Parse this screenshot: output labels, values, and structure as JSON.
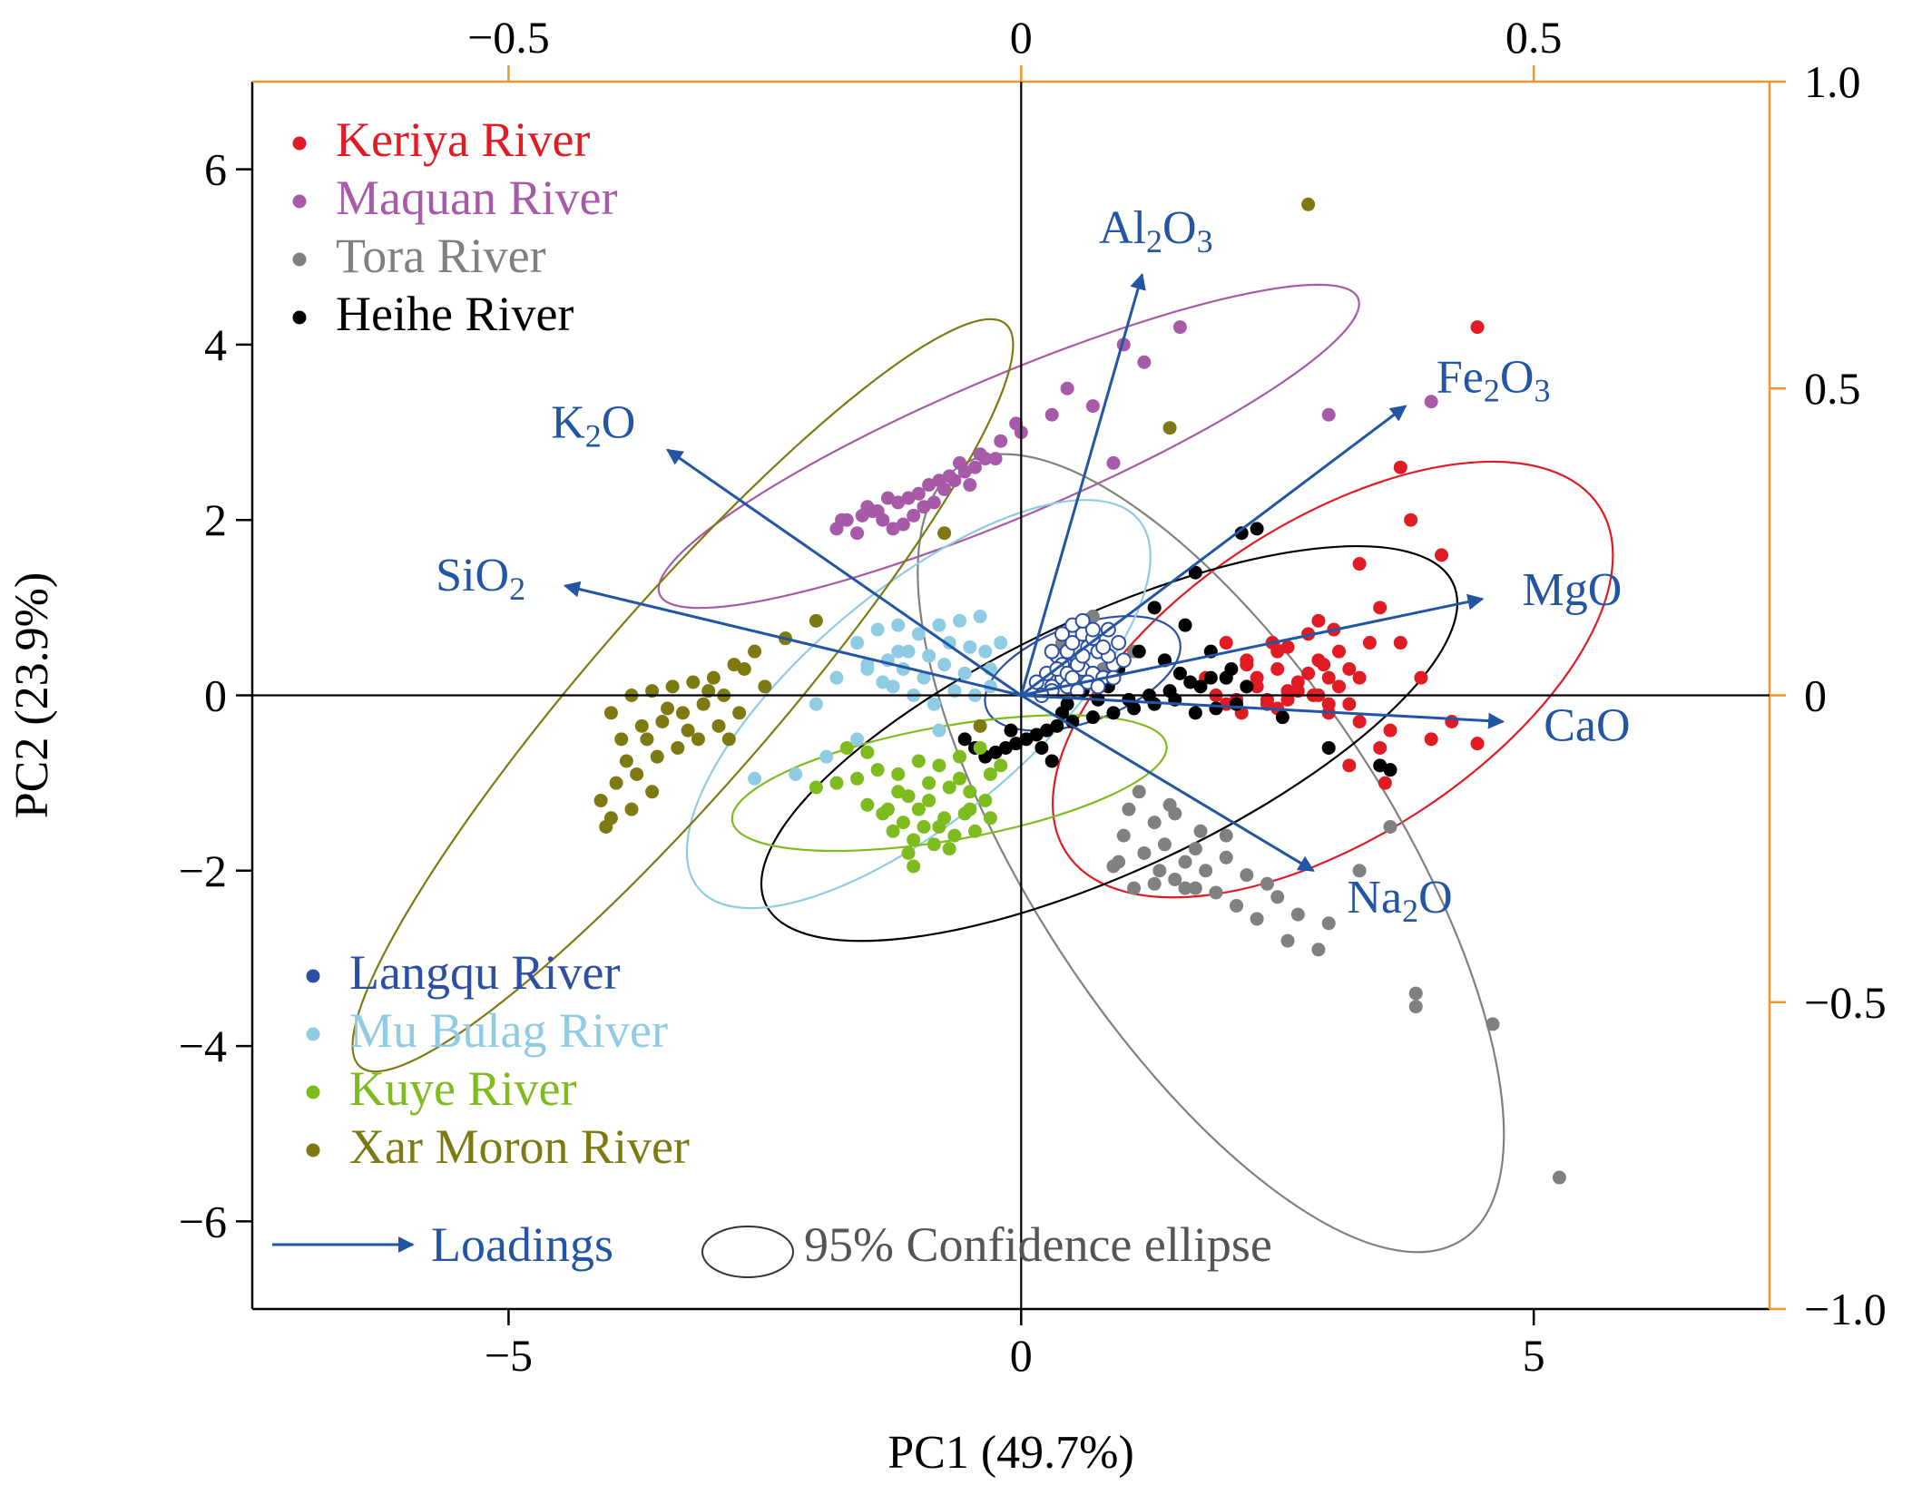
{
  "colors": {
    "keriya": "#e01b24",
    "maquan": "#a65aa8",
    "tora": "#808080",
    "heihe": "#000000",
    "langqu": "#2c4fa3",
    "mubulag": "#8fcbe3",
    "kuye": "#7dbb1f",
    "xarmoron": "#7d7a12",
    "loading": "#2255a4",
    "secondary_axis": "#f0962d"
  },
  "chart_data": {
    "type": "scatter",
    "xlabel": "PC1 (49.7%)",
    "ylabel": "PC2 (23.9%)",
    "xlim": [
      -7.5,
      7.3
    ],
    "ylim": [
      -7.0,
      7.0
    ],
    "x_ticks": [
      -5,
      0,
      5
    ],
    "x_tick_labels": [
      "−5",
      "0",
      "5"
    ],
    "y_ticks": [
      6,
      4,
      2,
      0,
      -2,
      -4,
      -6
    ],
    "y_tick_labels": [
      "6",
      "4",
      "2",
      "0",
      "−2",
      "−4",
      "−6"
    ],
    "top_axis": {
      "scale_per_data_unit": 0.1,
      "ticks": [
        -0.5,
        0,
        0.5
      ],
      "tick_labels": [
        "−0.5",
        "0",
        "0.5"
      ]
    },
    "right_axis": {
      "scale_per_data_unit": 0.1428571,
      "ticks": [
        1.0,
        0.5,
        0,
        -0.5,
        -1.0
      ],
      "tick_labels": [
        "1.0",
        "0.5",
        "0",
        "−0.5",
        "−1.0"
      ]
    },
    "legend_top": [
      {
        "name": "Keriya River",
        "color_key": "keriya"
      },
      {
        "name": "Maquan River",
        "color_key": "maquan"
      },
      {
        "name": "Tora River",
        "color_key": "tora"
      },
      {
        "name": "Heihe River",
        "color_key": "heihe"
      }
    ],
    "legend_bottom": [
      {
        "name": "Langqu River",
        "color_key": "langqu"
      },
      {
        "name": "Mu Bulag River",
        "color_key": "mubulag"
      },
      {
        "name": "Kuye River",
        "color_key": "kuye"
      },
      {
        "name": "Xar Moron River",
        "color_key": "xarmoron"
      }
    ],
    "key": {
      "loadings_label": "Loadings",
      "ellipse_label": "95% Confidence ellipse"
    },
    "loadings": [
      {
        "base": "Al",
        "sub1": "2",
        "mid": "O",
        "sub2": "3",
        "x": 1.18,
        "y": 4.8
      },
      {
        "base": "Fe",
        "sub1": "2",
        "mid": "O",
        "sub2": "3",
        "x": 3.75,
        "y": 3.3
      },
      {
        "base": "K",
        "sub1": "2",
        "mid": "O",
        "sub2": "",
        "x": -3.45,
        "y": 2.8
      },
      {
        "base": "SiO",
        "sub1": "2",
        "mid": "",
        "sub2": "",
        "x": -4.45,
        "y": 1.25
      },
      {
        "base": "MgO",
        "sub1": "",
        "mid": "",
        "sub2": "",
        "x": 4.5,
        "y": 1.1
      },
      {
        "base": "CaO",
        "sub1": "",
        "mid": "",
        "sub2": "",
        "x": 4.7,
        "y": -0.3
      },
      {
        "base": "Na",
        "sub1": "2",
        "mid": "O",
        "sub2": "",
        "x": 2.85,
        "y": -2.0
      }
    ],
    "ellipses": [
      {
        "name": "Keriya River",
        "color_key": "keriya",
        "cx": 3.04,
        "cy": 0.18,
        "rx": 3.1,
        "ry": 1.8,
        "angle": 33
      },
      {
        "name": "Maquan River",
        "color_key": "maquan",
        "cx": -0.12,
        "cy": 2.84,
        "rx": 3.7,
        "ry": 0.8,
        "angle": 23
      },
      {
        "name": "Tora River",
        "color_key": "tora",
        "cx": 1.85,
        "cy": -1.8,
        "rx": 4.5,
        "ry": 2.05,
        "angle": -57
      },
      {
        "name": "Heihe River",
        "color_key": "heihe",
        "cx": 0.86,
        "cy": -0.55,
        "rx": 3.7,
        "ry": 1.45,
        "angle": 25
      },
      {
        "name": "Langqu River",
        "color_key": "langqu",
        "cx": 0.6,
        "cy": 0.25,
        "rx": 1.0,
        "ry": 0.55,
        "angle": 20
      },
      {
        "name": "Mu Bulag River",
        "color_key": "mubulag",
        "cx": -1.0,
        "cy": -0.1,
        "rx": 2.8,
        "ry": 1.3,
        "angle": 40
      },
      {
        "name": "Kuye River",
        "color_key": "kuye",
        "cx": -0.7,
        "cy": -1.0,
        "rx": 2.15,
        "ry": 0.65,
        "angle": 10
      },
      {
        "name": "Xar Moron River",
        "color_key": "xarmoron",
        "cx": -3.3,
        "cy": 0.0,
        "rx": 4.8,
        "ry": 1.05,
        "angle": 49
      }
    ],
    "series": [
      {
        "name": "Keriya River",
        "color_key": "keriya",
        "hollow": false,
        "x": [
          4.45,
          3.7,
          3.8,
          3.3,
          3.5,
          4.1,
          2.0,
          2.6,
          2.9,
          3.1,
          3.4,
          2.2,
          2.5,
          2.8,
          3.0,
          3.2,
          2.3,
          2.6,
          2.9,
          3.1,
          3.3,
          2.1,
          2.4,
          2.7,
          2.95,
          2.2,
          2.5,
          2.8,
          3.05,
          3.2,
          2.0,
          2.3,
          2.6,
          2.85,
          3.0,
          2.4,
          2.7,
          1.8,
          1.4,
          2.0,
          2.5,
          3.0,
          3.3,
          3.6,
          4.2,
          2.9,
          3.7,
          3.9,
          4.0,
          4.45,
          3.2,
          3.5,
          3.55,
          2.15,
          2.45,
          1.9
        ],
        "y": [
          4.2,
          2.6,
          2.0,
          1.5,
          1.0,
          1.6,
          0.6,
          0.55,
          0.4,
          0.5,
          0.6,
          0.35,
          0.3,
          0.25,
          0.2,
          0.3,
          0.1,
          0.05,
          0.0,
          0.1,
          0.2,
          -0.05,
          -0.1,
          0.15,
          0.35,
          0.4,
          0.5,
          0.7,
          0.75,
          -0.1,
          0.2,
          0.2,
          -0.05,
          0.0,
          -0.1,
          -0.05,
          0.05,
          0.2,
          0.4,
          -0.1,
          -0.15,
          -0.2,
          -0.3,
          -0.4,
          -0.3,
          0.85,
          0.6,
          0.2,
          -0.5,
          -0.55,
          -0.8,
          -0.6,
          -1.0,
          -0.2,
          0.6,
          0.0
        ]
      },
      {
        "name": "Maquan River",
        "color_key": "maquan",
        "hollow": false,
        "x": [
          1.55,
          1.0,
          1.2,
          0.7,
          0.45,
          0.3,
          -0.05,
          -0.2,
          -0.4,
          -0.45,
          -0.6,
          -0.7,
          -0.8,
          -0.9,
          -1.0,
          -1.2,
          -1.3,
          -1.4,
          -1.5,
          -1.55,
          -1.7,
          -1.8,
          -0.55,
          -0.65,
          -0.75,
          -0.85,
          -0.95,
          -1.05,
          -1.15,
          -1.25,
          -1.35,
          -1.45,
          -0.35,
          -0.5,
          -1.6,
          -1.75,
          -1.1,
          0.9,
          3.0,
          4.0,
          0.0,
          -0.25
        ],
        "y": [
          4.2,
          4.0,
          3.8,
          3.3,
          3.5,
          3.2,
          3.1,
          2.9,
          2.75,
          2.6,
          2.65,
          2.5,
          2.45,
          2.4,
          2.3,
          2.2,
          2.25,
          2.1,
          2.15,
          2.05,
          2.0,
          1.9,
          2.55,
          2.45,
          2.35,
          2.2,
          2.15,
          2.05,
          1.95,
          1.9,
          2.0,
          2.1,
          2.7,
          2.4,
          1.85,
          2.0,
          2.25,
          2.65,
          3.2,
          3.35,
          3.0,
          2.7
        ]
      },
      {
        "name": "Tora River",
        "color_key": "tora",
        "hollow": false,
        "x": [
          5.25,
          4.6,
          3.85,
          3.85,
          2.9,
          2.6,
          2.3,
          2.1,
          1.9,
          1.7,
          1.5,
          1.3,
          1.1,
          0.9,
          1.2,
          1.4,
          1.6,
          1.8,
          2.0,
          2.2,
          2.4,
          2.5,
          2.7,
          3.0,
          3.3,
          3.6,
          1.0,
          1.3,
          1.5,
          1.7,
          2.0,
          1.15,
          1.45,
          1.75,
          1.05,
          1.35,
          1.6,
          0.95,
          0.7,
          0.4,
          0.5,
          0.65,
          0.8,
          1.1,
          0.55
        ],
        "y": [
          -5.5,
          -3.75,
          -3.4,
          -3.55,
          -2.9,
          -2.8,
          -2.55,
          -2.4,
          -2.25,
          -2.2,
          -2.1,
          -2.15,
          -2.2,
          -1.95,
          -1.8,
          -1.7,
          -1.9,
          -2.0,
          -1.85,
          -2.05,
          -2.15,
          -2.3,
          -2.5,
          -2.6,
          -2.0,
          -1.5,
          -1.6,
          -1.45,
          -1.35,
          -1.75,
          -1.6,
          -1.1,
          -1.25,
          -1.55,
          -1.3,
          -2.0,
          -2.2,
          -1.9,
          0.9,
          0.6,
          0.8,
          0.7,
          0.3,
          0.5,
          0.2
        ]
      },
      {
        "name": "Heihe River",
        "color_key": "heihe",
        "hollow": false,
        "x": [
          2.3,
          2.15,
          1.7,
          1.3,
          1.6,
          1.85,
          1.4,
          1.15,
          0.95,
          1.55,
          1.75,
          2.0,
          2.2,
          2.1,
          1.9,
          1.7,
          1.5,
          1.3,
          1.1,
          0.9,
          0.7,
          0.5,
          0.35,
          0.25,
          0.15,
          0.05,
          -0.05,
          -0.15,
          -0.25,
          -0.35,
          -0.45,
          -0.55,
          0.45,
          0.6,
          0.75,
          0.85,
          1.05,
          1.25,
          1.45,
          1.65,
          1.85,
          2.05,
          3.0,
          3.5,
          3.6,
          2.55,
          0.2,
          -0.1,
          0.4,
          0.3
        ],
        "y": [
          1.9,
          1.85,
          1.4,
          1.0,
          0.8,
          0.5,
          0.4,
          0.5,
          0.3,
          0.25,
          0.1,
          0.2,
          0.1,
          -0.1,
          -0.15,
          -0.2,
          -0.05,
          -0.1,
          -0.15,
          -0.2,
          -0.25,
          -0.3,
          -0.35,
          -0.4,
          -0.45,
          -0.5,
          -0.55,
          -0.6,
          -0.65,
          -0.7,
          -0.6,
          -0.5,
          -0.1,
          0.05,
          -0.05,
          0.1,
          -0.05,
          0.0,
          0.05,
          0.15,
          0.2,
          0.3,
          -0.6,
          -0.8,
          -0.85,
          -0.25,
          -0.6,
          -0.4,
          -0.2,
          -0.75
        ]
      },
      {
        "name": "Langqu River",
        "color_key": "langqu",
        "hollow": true,
        "x": [
          0.3,
          0.4,
          0.5,
          0.6,
          0.7,
          0.8,
          0.9,
          1.0,
          0.35,
          0.45,
          0.55,
          0.65,
          0.75,
          0.85,
          0.95,
          0.25,
          0.4,
          0.5,
          0.6,
          0.7,
          0.8,
          0.9,
          0.3,
          0.45,
          0.55,
          0.65,
          0.75,
          0.2,
          0.35,
          0.5,
          0.6,
          0.7,
          0.85,
          0.15,
          0.3,
          0.45,
          0.55,
          0.4,
          0.5,
          0.6
        ],
        "y": [
          0.1,
          0.2,
          0.15,
          0.3,
          0.25,
          0.2,
          0.35,
          0.4,
          0.45,
          0.5,
          0.4,
          0.55,
          0.5,
          0.45,
          0.6,
          0.25,
          0.35,
          0.6,
          0.7,
          0.65,
          0.55,
          0.2,
          0.05,
          0.1,
          0.05,
          0.15,
          0.1,
          0.0,
          0.3,
          0.8,
          0.85,
          0.75,
          0.75,
          0.15,
          0.5,
          0.25,
          0.35,
          0.7,
          0.2,
          0.45
        ]
      },
      {
        "name": "Mu Bulag River",
        "color_key": "mubulag",
        "hollow": false,
        "x": [
          -0.4,
          -0.6,
          -0.8,
          -1.0,
          -1.2,
          -1.4,
          -1.6,
          -0.5,
          -0.7,
          -0.9,
          -1.1,
          -1.3,
          -1.5,
          -0.3,
          -0.55,
          -0.75,
          -0.95,
          -1.15,
          -1.35,
          -0.45,
          -0.65,
          -0.85,
          -1.05,
          -1.25,
          -0.35,
          -2.6,
          -2.2,
          -1.9,
          -1.6,
          -2.0,
          -1.8,
          -1.5,
          -1.2,
          -0.8,
          -0.2,
          -0.3
        ],
        "y": [
          0.9,
          0.85,
          0.8,
          0.7,
          0.8,
          0.75,
          0.6,
          0.55,
          0.6,
          0.45,
          0.5,
          0.4,
          0.35,
          0.3,
          0.25,
          0.35,
          0.2,
          0.3,
          0.15,
          0.0,
          0.05,
          -0.1,
          0.0,
          0.1,
          0.5,
          -0.95,
          -0.9,
          -0.7,
          -0.5,
          -0.1,
          0.2,
          0.3,
          0.5,
          -0.4,
          0.6,
          0.1
        ]
      },
      {
        "name": "Kuye River",
        "color_key": "kuye",
        "hollow": false,
        "x": [
          -0.4,
          -0.6,
          -0.8,
          -1.0,
          -1.2,
          -1.4,
          -1.6,
          -1.8,
          -0.5,
          -0.7,
          -0.9,
          -1.1,
          -1.3,
          -1.5,
          -0.3,
          -0.55,
          -0.75,
          -0.95,
          -1.15,
          -1.35,
          -0.45,
          -0.65,
          -0.85,
          -1.05,
          -1.25,
          -0.35,
          -0.6,
          -0.9,
          -1.2,
          -1.0,
          -0.8,
          -0.7,
          -1.1,
          -0.5,
          -2.0,
          -1.05,
          -0.2,
          -0.3,
          -1.5,
          -1.7
        ],
        "y": [
          -0.6,
          -0.7,
          -0.8,
          -0.75,
          -0.9,
          -0.85,
          -0.95,
          -1.0,
          -1.1,
          -1.05,
          -1.2,
          -1.15,
          -1.3,
          -1.25,
          -0.9,
          -1.35,
          -1.4,
          -1.5,
          -1.45,
          -1.35,
          -1.55,
          -1.6,
          -1.7,
          -1.65,
          -1.55,
          -1.2,
          -0.95,
          -1.0,
          -1.1,
          -1.3,
          -1.5,
          -1.75,
          -1.8,
          -1.3,
          -1.05,
          -1.95,
          -0.8,
          -1.4,
          -0.65,
          -0.6
        ]
      },
      {
        "name": "Xar Moron River",
        "color_key": "xarmoron",
        "hollow": false,
        "x": [
          2.8,
          1.45,
          -0.75,
          -2.0,
          -2.3,
          -2.6,
          -2.8,
          -3.0,
          -3.2,
          -3.4,
          -3.6,
          -3.8,
          -4.0,
          -2.7,
          -2.9,
          -3.1,
          -3.3,
          -3.5,
          -3.7,
          -3.9,
          -2.5,
          -2.75,
          -2.95,
          -3.15,
          -3.35,
          -3.55,
          -3.75,
          -3.95,
          -4.1,
          -3.25,
          -3.45,
          -3.65,
          -3.85,
          -3.05,
          -2.85,
          -4.05,
          -3.6,
          -3.8,
          -4.0,
          -0.4
        ],
        "y": [
          5.6,
          3.05,
          1.85,
          0.85,
          0.65,
          0.5,
          0.35,
          0.2,
          0.15,
          0.1,
          0.05,
          0.0,
          -0.2,
          0.3,
          0.0,
          -0.1,
          -0.2,
          -0.3,
          -0.35,
          -0.5,
          0.1,
          -0.2,
          -0.35,
          -0.5,
          -0.6,
          -0.7,
          -0.9,
          -1.0,
          -1.2,
          -0.4,
          -0.15,
          -0.5,
          -0.75,
          0.05,
          -0.5,
          -1.5,
          -1.1,
          -1.3,
          -1.4,
          -0.35
        ]
      }
    ]
  }
}
